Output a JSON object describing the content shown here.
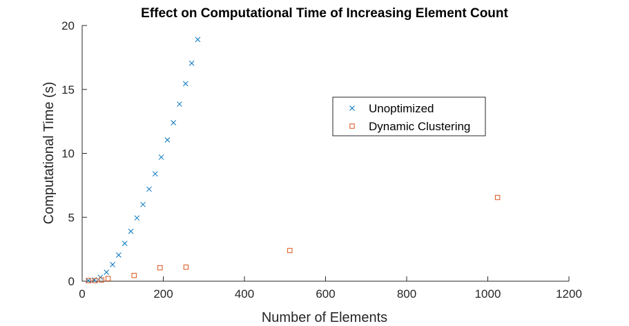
{
  "chart_data": {
    "type": "scatter",
    "title": "Effect on Computational Time of Increasing Element Count",
    "xlabel": "Number of Elements",
    "ylabel": "Computational Time (s)",
    "xlim": [
      0,
      1200
    ],
    "ylim": [
      0,
      20
    ],
    "xticks": [
      0,
      200,
      400,
      600,
      800,
      1000,
      1200
    ],
    "yticks": [
      0,
      5,
      10,
      15,
      20
    ],
    "grid": false,
    "legend_position": "center-right",
    "series": [
      {
        "name": "Unoptimized",
        "marker": "x",
        "color": "#0072bd",
        "x": [
          15,
          30,
          45,
          60,
          75,
          90,
          105,
          120,
          135,
          150,
          165,
          180,
          195,
          210,
          225,
          240,
          255,
          270,
          285
        ],
        "y": [
          0.05,
          0.1,
          0.3,
          0.7,
          1.3,
          2.05,
          2.95,
          3.9,
          4.95,
          6.0,
          7.2,
          8.4,
          9.7,
          11.05,
          12.4,
          13.85,
          15.45,
          17.05,
          18.9
        ]
      },
      {
        "name": "Dynamic Clustering",
        "marker": "square",
        "color": "#d95319",
        "x": [
          16,
          32,
          48,
          64,
          128,
          192,
          256,
          512,
          1024
        ],
        "y": [
          0.05,
          0.05,
          0.1,
          0.2,
          0.45,
          1.05,
          1.1,
          2.4,
          6.55
        ]
      }
    ]
  }
}
